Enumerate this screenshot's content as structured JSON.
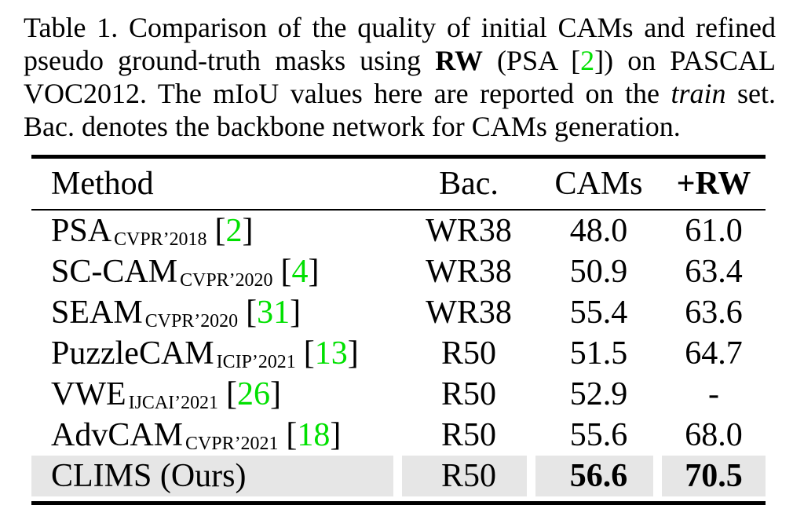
{
  "colors": {
    "green_cite": "#00e000",
    "highlight": "#e6e6e6",
    "ink": "#000000"
  },
  "caption": {
    "line1": "Table 1.  Comparison of the quality of initial CAMs and refined",
    "line2": {
      "pre": "pseudo ground-truth masks using ",
      "bold": "RW",
      "mid": " (PSA [",
      "cite": "2",
      "post": "]) on PASCAL"
    },
    "line3": {
      "pre": "VOC2012.  The mIoU values here are reported on the ",
      "italic": "train",
      "post": " set."
    },
    "line4": "Bac. denotes the backbone network for CAMs generation."
  },
  "table": {
    "cite_open": "[",
    "cite_close": "]",
    "columns": {
      "method": "Method",
      "bac": "Bac.",
      "cams": "CAMs",
      "rw": "+RW"
    },
    "rows": [
      {
        "method": "PSA",
        "venue": "CVPR’2018",
        "cite": "2",
        "bac": "WR38",
        "cams": "48.0",
        "rw": "61.0"
      },
      {
        "method": "SC-CAM",
        "venue": "CVPR’2020",
        "cite": "4",
        "bac": "WR38",
        "cams": "50.9",
        "rw": "63.4"
      },
      {
        "method": "SEAM",
        "venue": "CVPR’2020",
        "cite": "31",
        "bac": "WR38",
        "cams": "55.4",
        "rw": "63.6"
      },
      {
        "method": "PuzzleCAM",
        "venue": "ICIP’2021",
        "cite": "13",
        "bac": "R50",
        "cams": "51.5",
        "rw": "64.7"
      },
      {
        "method": "VWE",
        "venue": "IJCAI’2021",
        "cite": "26",
        "bac": "R50",
        "cams": "52.9",
        "rw": "-"
      },
      {
        "method": "AdvCAM",
        "venue": "CVPR’2021",
        "cite": "18",
        "bac": "R50",
        "cams": "55.6",
        "rw": "68.0"
      },
      {
        "method": "CLIMS (Ours)",
        "venue": "",
        "cite": "",
        "bac": "R50",
        "cams": "56.6",
        "rw": "70.5"
      }
    ]
  }
}
